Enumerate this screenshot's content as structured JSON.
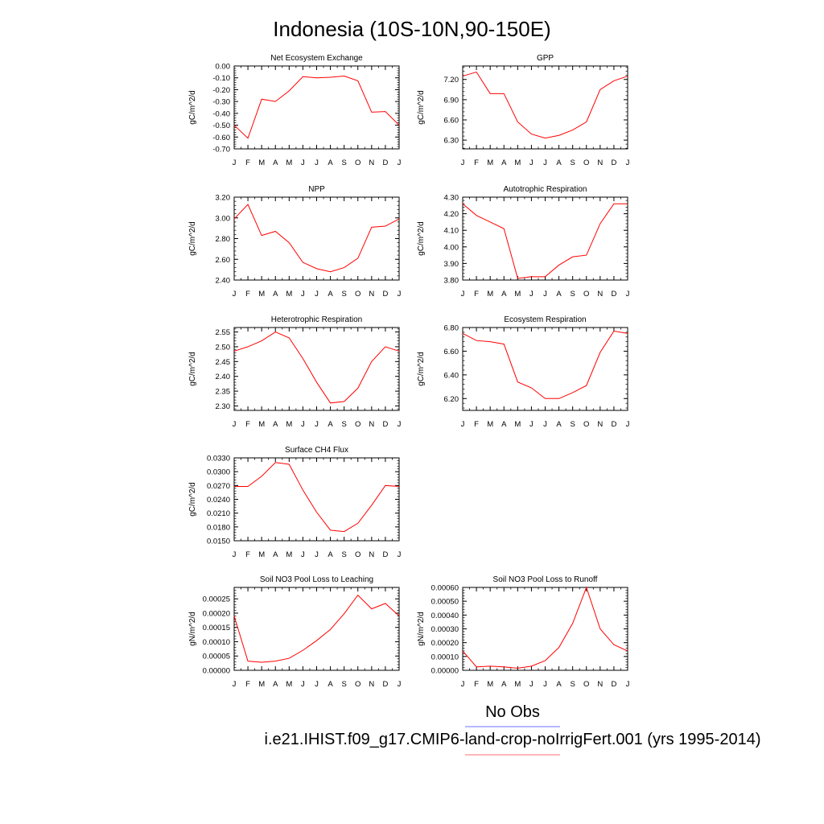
{
  "title": "Indonesia (10S-10N,90-150E)",
  "legend": {
    "obs_label": "No Obs",
    "obs_color": "#8c8cff",
    "model_label": "i.e21.IHIST.f09_g17.CMIP6-land-crop-noIrrigFert.001 (yrs 1995-2014)",
    "model_color": "#ff8c8c"
  },
  "line_color": "#ff0000",
  "chart_data": [
    {
      "type": "line",
      "title": "Net Ecosystem Exchange",
      "ylabel": "gC/m^2/d",
      "categories": [
        "J",
        "F",
        "M",
        "A",
        "M",
        "J",
        "J",
        "A",
        "S",
        "O",
        "N",
        "D",
        "J"
      ],
      "values": [
        -0.5,
        -0.61,
        -0.28,
        -0.3,
        -0.21,
        -0.09,
        -0.1,
        -0.095,
        -0.085,
        -0.125,
        -0.39,
        -0.385,
        -0.5
      ],
      "ylim": [
        -0.7,
        0.0
      ],
      "yticks": [
        "0.00",
        "-0.10",
        "-0.20",
        "-0.30",
        "-0.40",
        "-0.50",
        "-0.60",
        "-0.70"
      ],
      "ytick_values": [
        0.0,
        -0.1,
        -0.2,
        -0.3,
        -0.4,
        -0.5,
        -0.6,
        -0.7
      ]
    },
    {
      "type": "line",
      "title": "GPP",
      "ylabel": "gC/m^2/d",
      "categories": [
        "J",
        "F",
        "M",
        "A",
        "M",
        "J",
        "J",
        "A",
        "S",
        "O",
        "N",
        "D",
        "J"
      ],
      "values": [
        7.25,
        7.31,
        6.99,
        6.99,
        6.57,
        6.39,
        6.33,
        6.37,
        6.45,
        6.57,
        7.05,
        7.18,
        7.25
      ],
      "ylim": [
        6.17,
        7.4
      ],
      "yticks": [
        "7.20",
        "6.90",
        "6.60",
        "6.30"
      ],
      "ytick_values": [
        7.2,
        6.9,
        6.6,
        6.3
      ]
    },
    {
      "type": "line",
      "title": "NPP",
      "ylabel": "gC/m^2/d",
      "categories": [
        "J",
        "F",
        "M",
        "A",
        "M",
        "J",
        "J",
        "A",
        "S",
        "O",
        "N",
        "D",
        "J"
      ],
      "values": [
        2.99,
        3.13,
        2.83,
        2.87,
        2.76,
        2.57,
        2.51,
        2.48,
        2.52,
        2.61,
        2.91,
        2.92,
        2.99
      ],
      "ylim": [
        2.4,
        3.2
      ],
      "yticks": [
        "3.20",
        "3.00",
        "2.80",
        "2.60",
        "2.40"
      ],
      "ytick_values": [
        3.2,
        3.0,
        2.8,
        2.6,
        2.4
      ]
    },
    {
      "type": "line",
      "title": "Autotrophic Respiration",
      "ylabel": "gC/m^2/d",
      "categories": [
        "J",
        "F",
        "M",
        "A",
        "M",
        "J",
        "J",
        "A",
        "S",
        "O",
        "N",
        "D",
        "J"
      ],
      "values": [
        4.26,
        4.19,
        4.15,
        4.11,
        3.81,
        3.82,
        3.82,
        3.89,
        3.94,
        3.95,
        4.14,
        4.26,
        4.26
      ],
      "ylim": [
        3.8,
        4.3
      ],
      "yticks": [
        "4.30",
        "4.20",
        "4.10",
        "4.00",
        "3.90",
        "3.80"
      ],
      "ytick_values": [
        4.3,
        4.2,
        4.1,
        4.0,
        3.9,
        3.8
      ]
    },
    {
      "type": "line",
      "title": "Heterotrophic Respiration",
      "ylabel": "gC/m^2/d",
      "categories": [
        "J",
        "F",
        "M",
        "A",
        "M",
        "J",
        "J",
        "A",
        "S",
        "O",
        "N",
        "D",
        "J"
      ],
      "values": [
        2.485,
        2.5,
        2.52,
        2.55,
        2.53,
        2.46,
        2.38,
        2.31,
        2.315,
        2.36,
        2.45,
        2.5,
        2.485
      ],
      "ylim": [
        2.285,
        2.565
      ],
      "yticks": [
        "2.55",
        "2.50",
        "2.45",
        "2.40",
        "2.35",
        "2.30"
      ],
      "ytick_values": [
        2.55,
        2.5,
        2.45,
        2.4,
        2.35,
        2.3
      ]
    },
    {
      "type": "line",
      "title": "Ecosystem Respiration",
      "ylabel": "gC/m^2/d",
      "categories": [
        "J",
        "F",
        "M",
        "A",
        "M",
        "J",
        "J",
        "A",
        "S",
        "O",
        "N",
        "D",
        "J"
      ],
      "values": [
        6.75,
        6.69,
        6.68,
        6.66,
        6.34,
        6.29,
        6.2,
        6.2,
        6.25,
        6.31,
        6.59,
        6.77,
        6.75
      ],
      "ylim": [
        6.1,
        6.8
      ],
      "yticks": [
        "6.80",
        "6.60",
        "6.40",
        "6.20"
      ],
      "ytick_values": [
        6.8,
        6.6,
        6.4,
        6.2
      ]
    },
    {
      "type": "line",
      "title": "Surface CH4 Flux",
      "ylabel": "gC/m^2/d",
      "categories": [
        "J",
        "F",
        "M",
        "A",
        "M",
        "J",
        "J",
        "A",
        "S",
        "O",
        "N",
        "D",
        "J"
      ],
      "values": [
        0.0268,
        0.0268,
        0.029,
        0.032,
        0.0316,
        0.026,
        0.0212,
        0.0173,
        0.017,
        0.0188,
        0.0227,
        0.027,
        0.0268
      ],
      "ylim": [
        0.015,
        0.033
      ],
      "yticks": [
        "0.0330",
        "0.0300",
        "0.0270",
        "0.0240",
        "0.0210",
        "0.0180",
        "0.0150"
      ],
      "ytick_values": [
        0.033,
        0.03,
        0.027,
        0.024,
        0.021,
        0.018,
        0.015
      ]
    },
    {
      "type": "line",
      "title": "Soil NO3 Pool Loss to Leaching",
      "ylabel": "gN/m^2/d",
      "categories": [
        "J",
        "F",
        "M",
        "A",
        "M",
        "J",
        "J",
        "A",
        "S",
        "O",
        "N",
        "D",
        "J"
      ],
      "values": [
        0.00019,
        3.2e-05,
        2.8e-05,
        3.2e-05,
        4.2e-05,
        7e-05,
        0.000104,
        0.000143,
        0.000198,
        0.000263,
        0.000215,
        0.000234,
        0.00019
      ],
      "ylim": [
        0.0,
        0.00029
      ],
      "yticks": [
        "0.00025",
        "0.00020",
        "0.00015",
        "0.00010",
        "0.00005",
        "0.00000"
      ],
      "ytick_values": [
        0.00025,
        0.0002,
        0.00015,
        0.0001,
        5e-05,
        0.0
      ]
    },
    {
      "type": "line",
      "title": "Soil NO3 Pool Loss to Runoff",
      "ylabel": "gN/m^2/d",
      "categories": [
        "J",
        "F",
        "M",
        "A",
        "M",
        "J",
        "J",
        "A",
        "S",
        "O",
        "N",
        "D",
        "J"
      ],
      "values": [
        0.00014,
        2.5e-05,
        3e-05,
        2.5e-05,
        1.5e-05,
        3e-05,
        7e-05,
        0.000165,
        0.00034,
        0.0006,
        0.0003,
        0.000185,
        0.00014
      ],
      "ylim": [
        0.0,
        0.0006
      ],
      "yticks": [
        "0.00060",
        "0.00050",
        "0.00040",
        "0.00030",
        "0.00020",
        "0.00010",
        "0.00000"
      ],
      "ytick_values": [
        0.0006,
        0.0005,
        0.0004,
        0.0003,
        0.0002,
        0.0001,
        0.0
      ]
    }
  ]
}
